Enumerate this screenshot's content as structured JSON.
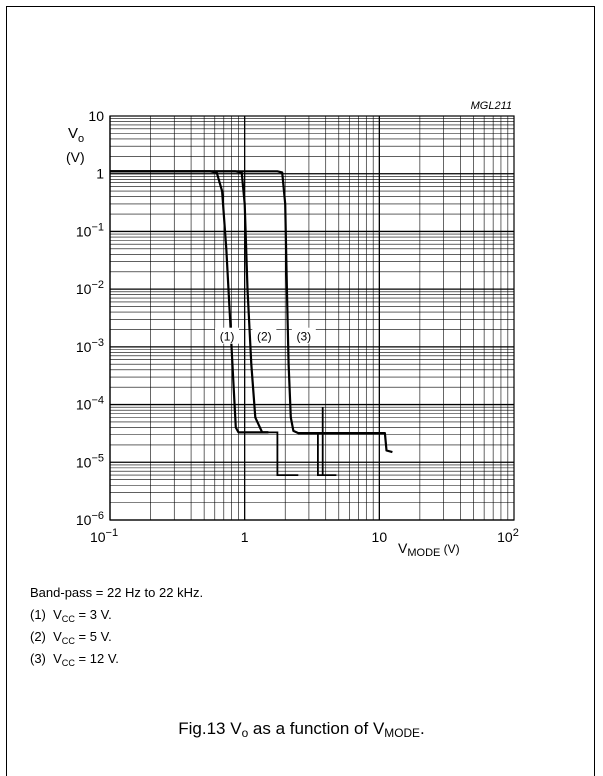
{
  "chart_data": {
    "type": "line",
    "code": "MGL211",
    "xlabel": {
      "main": "V",
      "sub": "MODE",
      "unit": " (V)"
    },
    "ylabel": {
      "main": "V",
      "sub": "o",
      "unit": "(V)"
    },
    "x_scale": "log",
    "y_scale": "log",
    "xlim": [
      0.1,
      100
    ],
    "ylim": [
      1e-06,
      10
    ],
    "grid": true,
    "x_ticks": [
      {
        "value": 0.1,
        "base": "10",
        "exp": "−1"
      },
      {
        "value": 1,
        "base": "1",
        "exp": ""
      },
      {
        "value": 10,
        "base": "10",
        "exp": ""
      },
      {
        "value": 100,
        "base": "10",
        "exp": "2"
      }
    ],
    "y_ticks": [
      {
        "value": 10,
        "base": "10",
        "exp": ""
      },
      {
        "value": 1,
        "base": "1",
        "exp": ""
      },
      {
        "value": 0.1,
        "base": "10",
        "exp": "−1"
      },
      {
        "value": 0.01,
        "base": "10",
        "exp": "−2"
      },
      {
        "value": 0.001,
        "base": "10",
        "exp": "−3"
      },
      {
        "value": 0.0001,
        "base": "10",
        "exp": "−4"
      },
      {
        "value": 1e-05,
        "base": "10",
        "exp": "−5"
      },
      {
        "value": 1e-06,
        "base": "10",
        "exp": "−6"
      }
    ],
    "series": [
      {
        "name": "(1)",
        "points": [
          [
            0.1,
            1.1
          ],
          [
            0.55,
            1.1
          ],
          [
            0.62,
            1.05
          ],
          [
            0.68,
            0.5
          ],
          [
            0.73,
            0.05
          ],
          [
            0.78,
            0.003
          ],
          [
            0.82,
            0.0003
          ],
          [
            0.86,
            4e-05
          ],
          [
            0.9,
            3.3e-05
          ],
          [
            1.5,
            3.3e-05
          ]
        ]
      },
      {
        "name": "(2)",
        "points": [
          [
            0.1,
            1.1
          ],
          [
            0.85,
            1.1
          ],
          [
            0.95,
            1.05
          ],
          [
            1.0,
            0.3
          ],
          [
            1.05,
            0.01
          ],
          [
            1.12,
            0.0005
          ],
          [
            1.2,
            6e-05
          ],
          [
            1.35,
            3.3e-05
          ],
          [
            1.5,
            3.3e-05
          ]
        ]
      },
      {
        "name": "(3)",
        "points": [
          [
            0.1,
            1.1
          ],
          [
            1.75,
            1.1
          ],
          [
            1.9,
            1.05
          ],
          [
            2.0,
            0.3
          ],
          [
            2.06,
            0.01
          ],
          [
            2.12,
            0.0005
          ],
          [
            2.2,
            6e-05
          ],
          [
            2.3,
            3.5e-05
          ],
          [
            2.5,
            3.2e-05
          ],
          [
            11,
            3.2e-05
          ],
          [
            11.3,
            1.6e-05
          ],
          [
            12.5,
            1.5e-05
          ]
        ]
      }
    ],
    "extra_segments": [
      [
        [
          1.5,
          3.3e-05
        ],
        [
          1.75,
          3.3e-05
        ],
        [
          1.75,
          6e-06
        ],
        [
          2.5,
          6e-06
        ]
      ],
      [
        [
          3.5,
          3.3e-05
        ],
        [
          3.5,
          6e-06
        ],
        [
          4.8,
          6e-06
        ]
      ],
      [
        [
          3.8,
          9e-05
        ],
        [
          3.8,
          6e-06
        ]
      ]
    ],
    "labels": [
      {
        "text": "(1)",
        "x": 0.74,
        "y": 0.0015
      },
      {
        "text": "(2)",
        "x": 1.4,
        "y": 0.0015
      },
      {
        "text": "(3)",
        "x": 2.75,
        "y": 0.0015
      }
    ]
  },
  "notes": {
    "bandpass": "Band-pass = 22 Hz to 22 kHz.",
    "items": [
      {
        "num": "(1)",
        "pre": "V",
        "sub": "CC",
        "post": " = 3 V."
      },
      {
        "num": "(2)",
        "pre": "V",
        "sub": "CC",
        "post": " = 5 V."
      },
      {
        "num": "(3)",
        "pre": "V",
        "sub": "CC",
        "post": " = 12 V."
      }
    ]
  },
  "caption": {
    "prefix": "Fig.13  V",
    "sub1": "o",
    "middle": " as a function of V",
    "sub2": "MODE",
    "suffix": "."
  }
}
